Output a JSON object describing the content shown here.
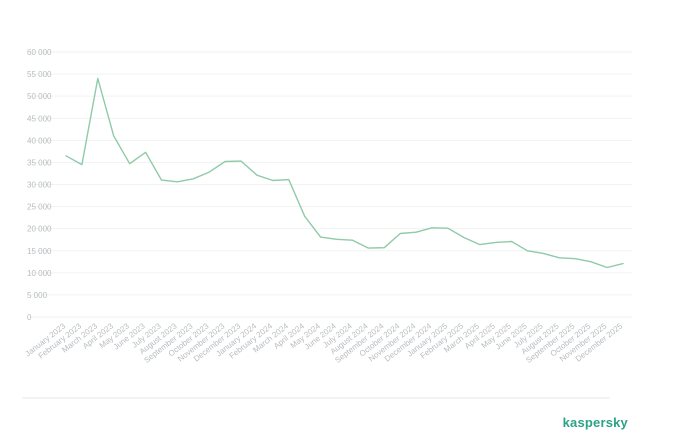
{
  "chart_data": {
    "type": "line",
    "title": "",
    "xlabel": "",
    "ylabel": "",
    "ylim": [
      0,
      60000
    ],
    "y_ticks": [
      "0",
      "5 000",
      "10 000",
      "15 000",
      "20 000",
      "25 000",
      "30 000",
      "35 000",
      "40 000",
      "45 000",
      "50 000",
      "55 000",
      "60 000"
    ],
    "grid": true,
    "legend": "none",
    "line_color": "#8fcaa9",
    "categories": [
      "January 2023",
      "February 2023",
      "March 2023",
      "April 2023",
      "May 2023",
      "June 2023",
      "July 2023",
      "August 2023",
      "September 2023",
      "October 2023",
      "November 2023",
      "December 2023",
      "January 2024",
      "February 2024",
      "March 2024",
      "April 2024",
      "May 2024",
      "June 2024",
      "July 2024",
      "August 2024",
      "September 2024",
      "October 2024",
      "November 2024",
      "December 2024",
      "January 2025",
      "February 2025",
      "March 2025",
      "April 2025",
      "May 2025",
      "June 2025",
      "July 2025",
      "August 2025",
      "September 2025",
      "October 2025",
      "November 2025",
      "December 2025"
    ],
    "series": [
      {
        "values": [
          36500,
          34500,
          54000,
          41000,
          34700,
          37300,
          31000,
          30600,
          31300,
          32800,
          35200,
          35300,
          32100,
          30900,
          31100,
          22800,
          18100,
          17600,
          17400,
          15600,
          15700,
          18900,
          19200,
          20200,
          20100,
          18000,
          16400,
          16900,
          17100,
          15000,
          14400,
          13400,
          13200,
          12500,
          11200,
          12100
        ]
      }
    ]
  },
  "brand": {
    "logo_text": "kaspersky",
    "color": "#2aa387"
  }
}
